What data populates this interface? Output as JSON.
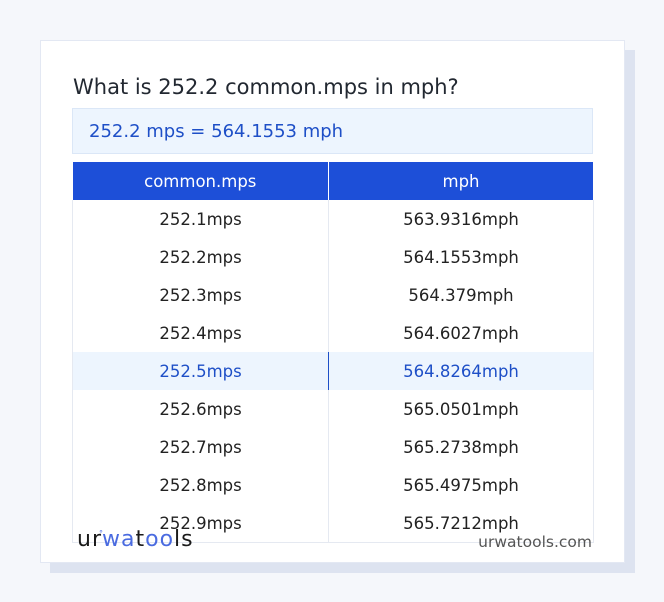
{
  "title": "What is 252.2 common.mps in mph?",
  "result": "252.2 mps = 564.1553 mph",
  "table": {
    "headers": [
      "common.mps",
      "mph"
    ],
    "rows": [
      [
        "252.1mps",
        "563.9316mph"
      ],
      [
        "252.2mps",
        "564.1553mph"
      ],
      [
        "252.3mps",
        "564.379mph"
      ],
      [
        "252.4mps",
        "564.6027mph"
      ],
      [
        "252.5mps",
        "564.8264mph"
      ],
      [
        "252.6mps",
        "565.0501mph"
      ],
      [
        "252.7mps",
        "565.2738mph"
      ],
      [
        "252.8mps",
        "565.4975mph"
      ],
      [
        "252.9mps",
        "565.7212mph"
      ]
    ],
    "highlighted_row": 4
  },
  "footer": {
    "logo": "urwatools",
    "site": "urwatools.com"
  },
  "colors": {
    "accent": "#1d4fd8",
    "highlight_bg": "#edf5fe"
  }
}
